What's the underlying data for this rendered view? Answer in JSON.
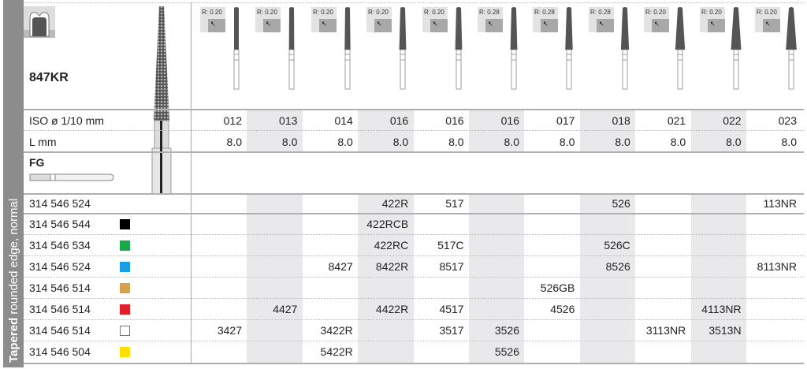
{
  "side_label": {
    "bold": "Tapered",
    "rest": "rounded edge, normal"
  },
  "product": {
    "name": "847KR",
    "shank_type": "FG"
  },
  "row_labels": {
    "iso": "ISO ø 1/10 mm",
    "length": "L mm"
  },
  "columns": [
    {
      "radius": "R: 0.20",
      "iso": "012",
      "length": "8.0",
      "shaded": false
    },
    {
      "radius": "R: 0.20",
      "iso": "013",
      "length": "8.0",
      "shaded": true
    },
    {
      "radius": "R: 0.20",
      "iso": "014",
      "length": "8.0",
      "shaded": false
    },
    {
      "radius": "R: 0.20",
      "iso": "016",
      "length": "8.0",
      "shaded": true
    },
    {
      "radius": "R: 0.20",
      "iso": "016",
      "length": "8.0",
      "shaded": false
    },
    {
      "radius": "R: 0.28",
      "iso": "016",
      "length": "8.0",
      "shaded": true
    },
    {
      "radius": "R: 0.28",
      "iso": "017",
      "length": "8.0",
      "shaded": false
    },
    {
      "radius": "R: 0.28",
      "iso": "018",
      "length": "8.0",
      "shaded": true
    },
    {
      "radius": "R: 0.20",
      "iso": "021",
      "length": "8.0",
      "shaded": false
    },
    {
      "radius": "R: 0.20",
      "iso": "022",
      "length": "8.0",
      "shaded": true
    },
    {
      "radius": "R: 0.20",
      "iso": "023",
      "length": "8.0",
      "shaded": false
    }
  ],
  "rows": [
    {
      "ref": "314 546 524",
      "color": null,
      "cells": [
        "",
        "",
        "",
        "422R",
        "517",
        "",
        "",
        "526",
        "",
        "",
        "113NR"
      ]
    },
    {
      "ref": "314 546 544",
      "color": "#000000",
      "cells": [
        "",
        "",
        "",
        "422RCB",
        "",
        "",
        "",
        "",
        "",
        "",
        ""
      ]
    },
    {
      "ref": "314 546 534",
      "color": "#1aa84a",
      "cells": [
        "",
        "",
        "",
        "422RC",
        "517C",
        "",
        "",
        "526C",
        "",
        "",
        ""
      ]
    },
    {
      "ref": "314 546 524",
      "color": "#1a9ee0",
      "cells": [
        "",
        "",
        "8427",
        "8422R",
        "8517",
        "",
        "",
        "8526",
        "",
        "",
        "8113NR"
      ]
    },
    {
      "ref": "314 546 514",
      "color": "#d4a14f",
      "cells": [
        "",
        "",
        "",
        "",
        "",
        "",
        "526GB",
        "",
        "",
        "",
        ""
      ]
    },
    {
      "ref": "314 546 514",
      "color": "#e2202a",
      "cells": [
        "",
        "4427",
        "",
        "4422R",
        "4517",
        "",
        "4526",
        "",
        "",
        "4113NR",
        ""
      ]
    },
    {
      "ref": "314 546 514",
      "color": "#ffffff",
      "cells": [
        "3427",
        "",
        "3422R",
        "",
        "3517",
        "3526",
        "",
        "",
        "3113NR",
        "3513N",
        ""
      ]
    },
    {
      "ref": "314 546 504",
      "color": "#ffe000",
      "cells": [
        "",
        "",
        "5422R",
        "",
        "",
        "5526",
        "",
        "",
        "",
        "",
        ""
      ]
    }
  ],
  "colors": {
    "band": "#8c8c8c",
    "shade": "#e9e9eb",
    "bur_head": "#555555"
  }
}
